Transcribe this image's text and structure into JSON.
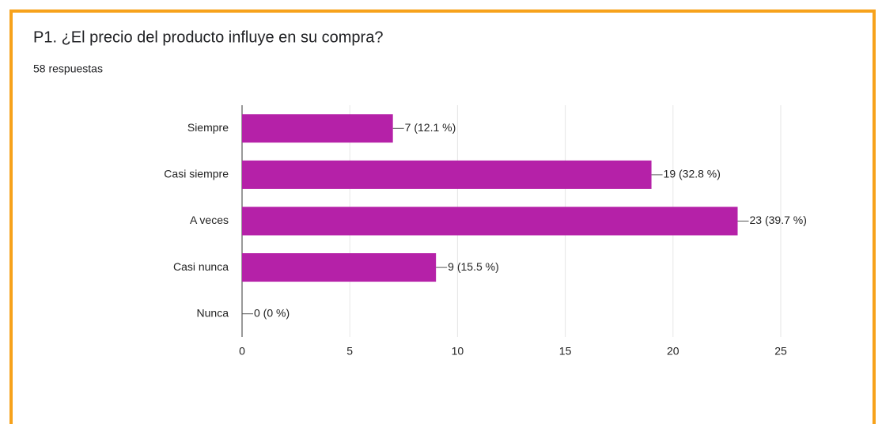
{
  "chart_data": {
    "type": "bar",
    "orientation": "horizontal",
    "title": "P1. ¿El precio del producto influye en su compra?",
    "subtitle": "58 respuestas",
    "categories": [
      "Siempre",
      "Casi siempre",
      "A veces",
      "Casi nunca",
      "Nunca"
    ],
    "values": [
      7,
      19,
      23,
      9,
      0
    ],
    "value_labels": [
      "7 (12.1 %)",
      "19 (32.8 %)",
      "23 (39.7 %)",
      "9 (15.5 %)",
      "0 (0 %)"
    ],
    "color": "#b521a8",
    "xlim": [
      0,
      25
    ],
    "xticks": [
      0,
      5,
      10,
      15,
      20,
      25
    ],
    "grid": true
  }
}
